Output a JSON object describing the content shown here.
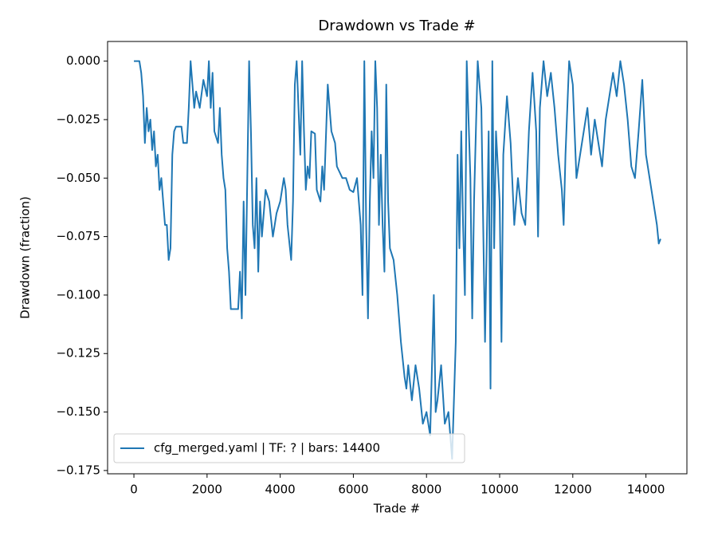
{
  "chart_data": {
    "type": "line",
    "title": "Drawdown vs Trade #",
    "x_label": "Trade #",
    "y_label": "Drawdown (fraction)",
    "xlim": [
      -720,
      15120
    ],
    "ylim": [
      -0.1764,
      0.0084
    ],
    "xticks": [
      0,
      2000,
      4000,
      6000,
      8000,
      10000,
      12000,
      14000
    ],
    "yticks": [
      {
        "value": 0,
        "label": "0.000"
      },
      {
        "value": -0.025,
        "label": "−0.025"
      },
      {
        "value": -0.05,
        "label": "−0.050"
      },
      {
        "value": -0.075,
        "label": "−0.075"
      },
      {
        "value": -0.1,
        "label": "−0.100"
      },
      {
        "value": -0.125,
        "label": "−0.125"
      },
      {
        "value": -0.15,
        "label": "−0.150"
      },
      {
        "value": -0.175,
        "label": "−0.175"
      }
    ],
    "grid": false,
    "legend": "lower left",
    "x": [
      0,
      150,
      200,
      250,
      300,
      350,
      400,
      450,
      500,
      550,
      600,
      650,
      700,
      750,
      800,
      850,
      900,
      950,
      1000,
      1050,
      1100,
      1150,
      1300,
      1350,
      1450,
      1500,
      1550,
      1600,
      1650,
      1700,
      1800,
      1900,
      2000,
      2050,
      2100,
      2150,
      2200,
      2300,
      2350,
      2400,
      2450,
      2500,
      2550,
      2600,
      2650,
      2850,
      2900,
      2950,
      3000,
      3050,
      3100,
      3150,
      3200,
      3250,
      3300,
      3350,
      3400,
      3450,
      3500,
      3600,
      3700,
      3800,
      3900,
      4000,
      4100,
      4150,
      4200,
      4300,
      4350,
      4400,
      4450,
      4500,
      4550,
      4600,
      4650,
      4700,
      4750,
      4800,
      4850,
      4950,
      5000,
      5100,
      5150,
      5200,
      5300,
      5350,
      5400,
      5500,
      5550,
      5700,
      5800,
      5900,
      6000,
      6100,
      6150,
      6200,
      6250,
      6300,
      6350,
      6400,
      6450,
      6500,
      6550,
      6600,
      6650,
      6700,
      6750,
      6800,
      6850,
      6900,
      6950,
      7000,
      7100,
      7200,
      7300,
      7400,
      7450,
      7500,
      7600,
      7700,
      7800,
      7900,
      8000,
      8100,
      8200,
      8250,
      8300,
      8400,
      8500,
      8600,
      8700,
      8800,
      8850,
      8900,
      8950,
      9000,
      9050,
      9100,
      9200,
      9250,
      9300,
      9400,
      9500,
      9600,
      9700,
      9750,
      9800,
      9850,
      9900,
      10000,
      10050,
      10100,
      10200,
      10300,
      10400,
      10500,
      10600,
      10700,
      10800,
      10900,
      11000,
      11050,
      11100,
      11200,
      11300,
      11400,
      11500,
      11600,
      11700,
      11750,
      11800,
      11900,
      12000,
      12100,
      12200,
      12300,
      12400,
      12500,
      12600,
      12700,
      12800,
      12900,
      13000,
      13100,
      13200,
      13300,
      13400,
      13500,
      13600,
      13700,
      13800,
      13900,
      14000,
      14100,
      14200,
      14300,
      14350,
      14400
    ],
    "series": [
      {
        "name": "cfg_merged.yaml | TF: ? | bars: 14400",
        "color": "#1f77b4",
        "values": [
          0,
          0,
          -0.005,
          -0.015,
          -0.035,
          -0.02,
          -0.03,
          -0.025,
          -0.038,
          -0.03,
          -0.045,
          -0.04,
          -0.055,
          -0.05,
          -0.06,
          -0.07,
          -0.07,
          -0.085,
          -0.08,
          -0.04,
          -0.03,
          -0.028,
          -0.028,
          -0.035,
          -0.035,
          -0.02,
          0,
          -0.01,
          -0.02,
          -0.013,
          -0.02,
          -0.008,
          -0.015,
          0,
          -0.02,
          -0.005,
          -0.03,
          -0.035,
          -0.02,
          -0.04,
          -0.05,
          -0.055,
          -0.08,
          -0.09,
          -0.106,
          -0.106,
          -0.09,
          -0.11,
          -0.06,
          -0.1,
          -0.05,
          0,
          -0.03,
          -0.07,
          -0.08,
          -0.05,
          -0.09,
          -0.06,
          -0.075,
          -0.055,
          -0.06,
          -0.075,
          -0.065,
          -0.06,
          -0.05,
          -0.055,
          -0.07,
          -0.085,
          -0.06,
          -0.01,
          0,
          -0.02,
          -0.04,
          0,
          -0.03,
          -0.055,
          -0.045,
          -0.05,
          -0.03,
          -0.031,
          -0.055,
          -0.06,
          -0.045,
          -0.055,
          -0.01,
          -0.02,
          -0.03,
          -0.035,
          -0.045,
          -0.05,
          -0.05,
          -0.055,
          -0.056,
          -0.05,
          -0.06,
          -0.07,
          -0.1,
          0,
          -0.07,
          -0.11,
          -0.06,
          -0.03,
          -0.05,
          0,
          -0.02,
          -0.07,
          -0.04,
          -0.07,
          -0.09,
          -0.01,
          -0.06,
          -0.08,
          -0.085,
          -0.1,
          -0.12,
          -0.135,
          -0.14,
          -0.13,
          -0.145,
          -0.13,
          -0.14,
          -0.155,
          -0.15,
          -0.16,
          -0.1,
          -0.15,
          -0.145,
          -0.13,
          -0.155,
          -0.15,
          -0.17,
          -0.12,
          -0.04,
          -0.08,
          -0.03,
          -0.07,
          -0.1,
          0,
          -0.05,
          -0.11,
          -0.06,
          0,
          -0.02,
          -0.12,
          -0.03,
          -0.14,
          0,
          -0.08,
          -0.03,
          -0.06,
          -0.12,
          -0.04,
          -0.015,
          -0.035,
          -0.07,
          -0.05,
          -0.065,
          -0.07,
          -0.03,
          -0.005,
          -0.03,
          -0.075,
          -0.02,
          0,
          -0.015,
          -0.005,
          -0.02,
          -0.04,
          -0.055,
          -0.07,
          -0.04,
          0,
          -0.01,
          -0.05,
          -0.04,
          -0.03,
          -0.02,
          -0.04,
          -0.025,
          -0.035,
          -0.045,
          -0.025,
          -0.015,
          -0.005,
          -0.015,
          0,
          -0.01,
          -0.025,
          -0.045,
          -0.05,
          -0.03,
          -0.008,
          -0.04,
          -0.05,
          -0.06,
          -0.07,
          -0.078,
          -0.076
        ]
      }
    ]
  }
}
